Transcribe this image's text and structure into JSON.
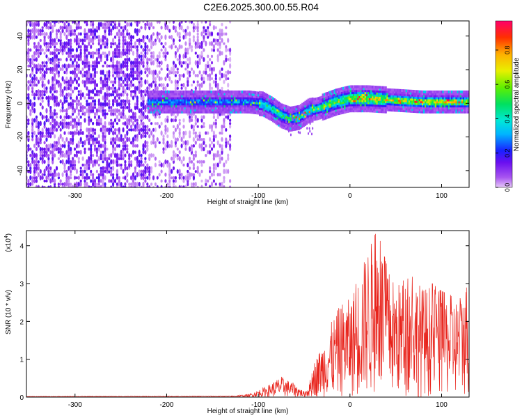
{
  "title": "C2E6.2025.300.00.55.R04",
  "chart_data": [
    {
      "type": "heatmap",
      "xlabel": "Height of straight line (km)",
      "ylabel": "Frequency (Hz)",
      "xlim": [
        -353,
        130
      ],
      "ylim": [
        -50,
        49
      ],
      "xticks": [
        -300,
        -200,
        -100,
        0,
        100
      ],
      "yticks": [
        -40,
        -20,
        0,
        20,
        40
      ],
      "colorbar": {
        "label": "Normalized spectral amplitude",
        "range": [
          0.0,
          0.97
        ],
        "ticks": [
          "0.0",
          "0.2",
          "0.4",
          "0.6",
          "0.8"
        ]
      },
      "center_frequency_trace": {
        "x": [
          -220,
          -200,
          -160,
          -130,
          -110,
          -95,
          -85,
          -75,
          -65,
          -55,
          -45,
          -35,
          -25,
          -15,
          0,
          20,
          50,
          80,
          100,
          130
        ],
        "y": [
          1,
          1,
          1,
          1,
          1,
          0,
          -3,
          -7,
          -9,
          -8,
          -4,
          -3,
          -1,
          1,
          3,
          3,
          2,
          1,
          1,
          1
        ]
      },
      "grid": false
    },
    {
      "type": "line",
      "xlabel": "Height of straight line (km)",
      "ylabel": "SNR (10 * v/v)",
      "scale_label": "(x10",
      "scale_exponent": "4",
      "xlim": [
        -353,
        130
      ],
      "ylim": [
        0,
        4.4
      ],
      "xticks": [
        -300,
        -200,
        -100,
        0,
        100
      ],
      "yticks": [
        0,
        1,
        2,
        3,
        4
      ],
      "series": [
        {
          "color": "#e8231b",
          "envelope_x": [
            -353,
            -130,
            -110,
            -90,
            -75,
            -60,
            -50,
            -45,
            -40,
            -30,
            -20,
            -10,
            0,
            10,
            20,
            30,
            40,
            50,
            60,
            70,
            80,
            90,
            100,
            110,
            120,
            130
          ],
          "envelope_y": [
            0.02,
            0.03,
            0.08,
            0.3,
            0.55,
            0.35,
            0.15,
            0.3,
            0.9,
            1.4,
            2.0,
            2.5,
            2.6,
            3.2,
            4.0,
            4.4,
            3.5,
            3.0,
            3.1,
            3.2,
            2.9,
            3.0,
            2.8,
            2.7,
            2.6,
            3.3
          ]
        }
      ],
      "grid": false
    }
  ]
}
